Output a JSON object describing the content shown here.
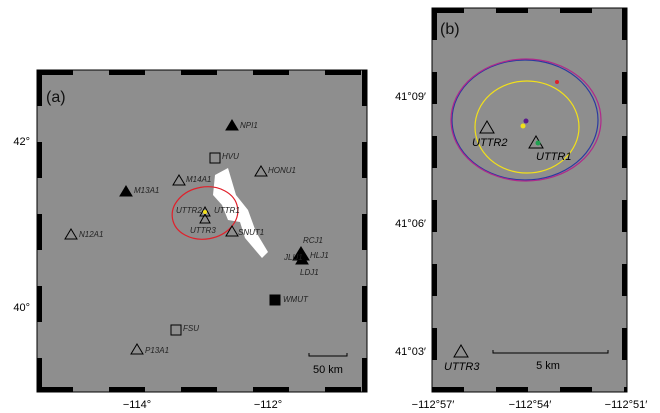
{
  "panel_a": {
    "label": "(a)",
    "x_ticks": [
      "−114°",
      "−112°"
    ],
    "y_ticks": [
      "42°",
      "40°"
    ],
    "scale": "50 km",
    "stations": [
      "NPI1",
      "HVU",
      "HONU1",
      "M14A1",
      "M13A1",
      "UTTR2",
      "UTTR1",
      "UTTR3",
      "SNUT1",
      "N12A1",
      "RCJ1",
      "JLU1",
      "HLJ1",
      "LDJ1",
      "WMUT",
      "FSU",
      "P13A1"
    ]
  },
  "panel_b": {
    "label": "(b)",
    "x_ticks": [
      "−112°57′",
      "−112°54′",
      "−112°51′"
    ],
    "y_ticks": [
      "41°09′",
      "41°06′",
      "41°03′"
    ],
    "scale": "5 km",
    "stations": [
      "UTTR2",
      "UTTR1",
      "UTTR3"
    ]
  }
}
